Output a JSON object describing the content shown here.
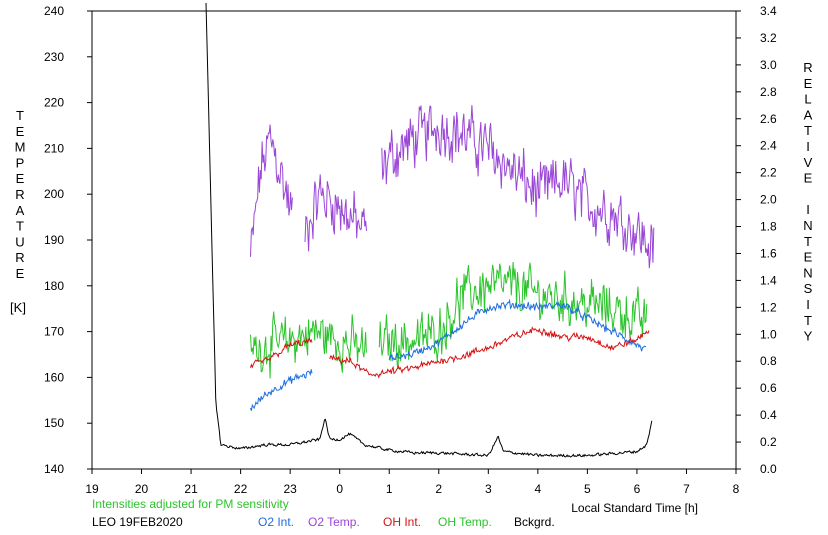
{
  "chart_data": {
    "type": "line",
    "station_date": "LEO 19FEB2020",
    "note": "Intensities adjusted for PM sensitivity",
    "xlabel": "Local Standard Time [h]",
    "x_ticks": [
      "19",
      "20",
      "21",
      "22",
      "23",
      "0",
      "1",
      "2",
      "3",
      "4",
      "5",
      "6",
      "7",
      "8"
    ],
    "x_range_hours_from_19": [
      0,
      13
    ],
    "left_axis": {
      "label_letters": [
        "T",
        "E",
        "M",
        "P",
        "E",
        "R",
        "A",
        "T",
        "U",
        "R",
        "E"
      ],
      "unit": "[K]",
      "range": [
        140,
        240
      ],
      "ticks": [
        "140",
        "150",
        "160",
        "170",
        "180",
        "190",
        "200",
        "210",
        "220",
        "230",
        "240"
      ]
    },
    "right_axis": {
      "label_letters": [
        "R",
        "E",
        "L",
        "A",
        "T",
        "I",
        "V",
        "E",
        "",
        "I",
        "N",
        "T",
        "E",
        "N",
        "S",
        "I",
        "T",
        "Y"
      ],
      "range": [
        0,
        3.4
      ],
      "ticks": [
        "0.0",
        "0.2",
        "0.4",
        "0.6",
        "0.8",
        "1.0",
        "1.2",
        "1.4",
        "1.6",
        "1.8",
        "2.0",
        "2.2",
        "2.4",
        "2.6",
        "2.8",
        "3.0",
        "3.2",
        "3.4"
      ]
    },
    "legend": [
      {
        "name": "O2 Int.",
        "color": "#1e6ee0"
      },
      {
        "name": "O2 Temp.",
        "color": "#9a46d6"
      },
      {
        "name": "OH Int.",
        "color": "#d41414"
      },
      {
        "name": "OH Temp.",
        "color": "#2cc42c"
      },
      {
        "name": "Bckgrd.",
        "color": "#000000"
      }
    ],
    "series": [
      {
        "name": "O2 Temp.",
        "axis": "left",
        "color": "#9a46d6",
        "noise": 7,
        "segments": [
          [
            3.2,
            4.05
          ],
          [
            4.3,
            5.55
          ],
          [
            5.85,
            11.35
          ]
        ],
        "trend": [
          [
            3.2,
            186
          ],
          [
            3.4,
            205
          ],
          [
            3.6,
            212
          ],
          [
            3.8,
            205
          ],
          [
            4.05,
            195
          ],
          [
            4.3,
            192
          ],
          [
            4.6,
            200
          ],
          [
            4.9,
            198
          ],
          [
            5.2,
            195
          ],
          [
            5.5,
            192
          ],
          [
            5.85,
            205
          ],
          [
            6.0,
            208
          ],
          [
            6.5,
            212
          ],
          [
            7.0,
            215
          ],
          [
            7.5,
            213
          ],
          [
            8.0,
            210
          ],
          [
            8.5,
            205
          ],
          [
            9.0,
            200
          ],
          [
            9.5,
            203
          ],
          [
            10.0,
            198
          ],
          [
            10.5,
            196
          ],
          [
            11.0,
            192
          ],
          [
            11.3,
            188
          ]
        ]
      },
      {
        "name": "OH Temp.",
        "axis": "left",
        "color": "#2cc42c",
        "noise": 6,
        "segments": [
          [
            3.2,
            5.55
          ],
          [
            5.8,
            11.2
          ]
        ],
        "trend": [
          [
            3.2,
            166
          ],
          [
            4.0,
            168
          ],
          [
            4.5,
            170
          ],
          [
            5.0,
            168
          ],
          [
            5.5,
            166
          ],
          [
            6.0,
            168
          ],
          [
            6.5,
            168
          ],
          [
            7.0,
            170
          ],
          [
            7.5,
            178
          ],
          [
            8.0,
            180
          ],
          [
            8.5,
            180
          ],
          [
            9.0,
            178
          ],
          [
            9.5,
            177
          ],
          [
            10.0,
            176
          ],
          [
            10.5,
            175
          ],
          [
            11.0,
            173
          ],
          [
            11.2,
            172
          ]
        ]
      },
      {
        "name": "O2 Int.",
        "axis": "right",
        "color": "#1e6ee0",
        "noise": 0.035,
        "segments": [
          [
            3.2,
            4.45
          ],
          [
            6.0,
            11.2
          ]
        ],
        "trend": [
          [
            3.2,
            0.45
          ],
          [
            3.5,
            0.55
          ],
          [
            3.8,
            0.62
          ],
          [
            4.1,
            0.67
          ],
          [
            4.45,
            0.72
          ],
          [
            6.0,
            0.82
          ],
          [
            6.5,
            0.86
          ],
          [
            7.0,
            0.94
          ],
          [
            7.5,
            1.08
          ],
          [
            8.0,
            1.2
          ],
          [
            8.5,
            1.22
          ],
          [
            9.0,
            1.2
          ],
          [
            9.5,
            1.22
          ],
          [
            10.0,
            1.12
          ],
          [
            10.5,
            1.02
          ],
          [
            11.0,
            0.92
          ],
          [
            11.2,
            0.88
          ]
        ]
      },
      {
        "name": "OH Int.",
        "axis": "right",
        "color": "#d41414",
        "noise": 0.03,
        "segments": [
          [
            3.2,
            4.45
          ],
          [
            4.8,
            11.25
          ]
        ],
        "trend": [
          [
            3.2,
            0.76
          ],
          [
            3.6,
            0.82
          ],
          [
            4.0,
            0.92
          ],
          [
            4.45,
            0.95
          ],
          [
            4.8,
            0.82
          ],
          [
            5.2,
            0.8
          ],
          [
            5.6,
            0.7
          ],
          [
            6.0,
            0.72
          ],
          [
            6.5,
            0.75
          ],
          [
            7.0,
            0.8
          ],
          [
            7.5,
            0.84
          ],
          [
            8.0,
            0.9
          ],
          [
            8.5,
            0.98
          ],
          [
            9.0,
            1.04
          ],
          [
            9.5,
            0.98
          ],
          [
            10.0,
            0.98
          ],
          [
            10.5,
            0.9
          ],
          [
            11.0,
            0.96
          ],
          [
            11.25,
            1.04
          ]
        ]
      },
      {
        "name": "Bckgrd.",
        "axis": "right",
        "color": "#000000",
        "noise": 0.025,
        "segments": [
          [
            2.3,
            11.3
          ]
        ],
        "trend": [
          [
            2.3,
            3.5
          ],
          [
            2.45,
            1.2
          ],
          [
            2.5,
            0.5
          ],
          [
            2.6,
            0.18
          ],
          [
            3.0,
            0.15
          ],
          [
            3.5,
            0.18
          ],
          [
            4.0,
            0.18
          ],
          [
            4.6,
            0.22
          ],
          [
            4.7,
            0.38
          ],
          [
            4.8,
            0.22
          ],
          [
            5.0,
            0.22
          ],
          [
            5.2,
            0.26
          ],
          [
            5.5,
            0.18
          ],
          [
            6.0,
            0.14
          ],
          [
            6.5,
            0.12
          ],
          [
            7.0,
            0.12
          ],
          [
            8.0,
            0.1
          ],
          [
            8.2,
            0.24
          ],
          [
            8.3,
            0.13
          ],
          [
            9.0,
            0.1
          ],
          [
            10.0,
            0.1
          ],
          [
            11.0,
            0.13
          ],
          [
            11.2,
            0.18
          ],
          [
            11.3,
            0.35
          ]
        ]
      }
    ]
  }
}
